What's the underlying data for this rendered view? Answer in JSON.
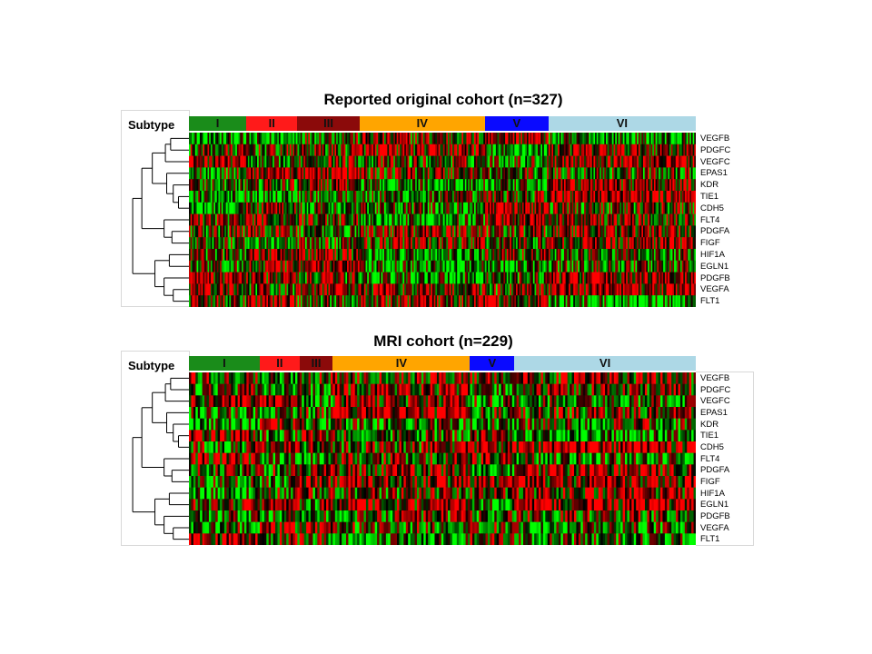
{
  "chart_data": [
    {
      "type": "heatmap",
      "title": "Reported original cohort (n=327)",
      "subtype_label": "Subtype",
      "samples": 327,
      "subtypes": [
        {
          "label": "I",
          "color": "#1a8c1a",
          "count": 37
        },
        {
          "label": "II",
          "color": "#ff1a1a",
          "count": 33
        },
        {
          "label": "III",
          "color": "#8b0a0a",
          "count": 40
        },
        {
          "label": "IV",
          "color": "#ffa500",
          "count": 81
        },
        {
          "label": "V",
          "color": "#0a0aff",
          "count": 41
        },
        {
          "label": "VI",
          "color": "#add8e6",
          "count": 95
        }
      ],
      "genes": [
        "VEGFB",
        "PDGFC",
        "VEGFC",
        "EPAS1",
        "KDR",
        "TIE1",
        "CDH5",
        "FLT4",
        "PDGFA",
        "FIGF",
        "HIF1A",
        "EGLN1",
        "PDGFB",
        "VEGFA",
        "FLT1"
      ],
      "color_scale": {
        "low": "#00ff00",
        "mid": "#000000",
        "high": "#ff0000"
      },
      "seed": 12345
    },
    {
      "type": "heatmap",
      "title": "MRI cohort (n=229)",
      "subtype_label": "Subtype",
      "samples": 229,
      "subtypes": [
        {
          "label": "I",
          "color": "#1a8c1a",
          "count": 32
        },
        {
          "label": "II",
          "color": "#ff1a1a",
          "count": 18
        },
        {
          "label": "III",
          "color": "#8b0a0a",
          "count": 15
        },
        {
          "label": "IV",
          "color": "#ffa500",
          "count": 62
        },
        {
          "label": "V",
          "color": "#0a0aff",
          "count": 20
        },
        {
          "label": "VI",
          "color": "#add8e6",
          "count": 82
        }
      ],
      "genes": [
        "VEGFB",
        "PDGFC",
        "VEGFC",
        "EPAS1",
        "KDR",
        "TIE1",
        "CDH5",
        "FLT4",
        "PDGFA",
        "FIGF",
        "HIF1A",
        "EGLN1",
        "PDGFB",
        "VEGFA",
        "FLT1"
      ],
      "color_scale": {
        "low": "#00ff00",
        "mid": "#000000",
        "high": "#ff0000"
      },
      "seed": 67890
    }
  ]
}
